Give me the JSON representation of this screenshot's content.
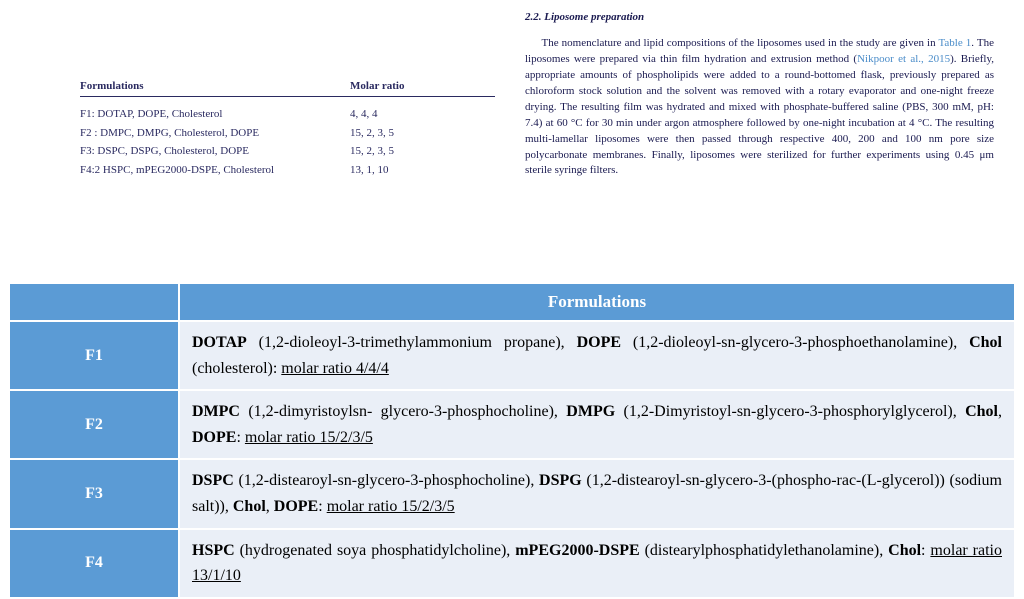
{
  "colors": {
    "accent_blue": "#5b9bd5",
    "row_bg": "#eaeff7",
    "text_body": "#1a1a50",
    "link": "#4a8cc9"
  },
  "small_table": {
    "header_col1": "Formulations",
    "header_col2": "Molar ratio",
    "rows": [
      {
        "c1": "F1: DOTAP, DOPE, Cholesterol",
        "c2": "4, 4, 4"
      },
      {
        "c1": "F2 : DMPC, DMPG, Cholesterol, DOPE",
        "c2": "15, 2, 3, 5"
      },
      {
        "c1": "F3: DSPC, DSPG, Cholesterol, DOPE",
        "c2": "15, 2, 3, 5"
      },
      {
        "c1": "F4:2 HSPC, mPEG2000-DSPE, Cholesterol",
        "c2": "13, 1, 10"
      }
    ]
  },
  "section": {
    "heading": "2.2.  Liposome preparation",
    "body_pre": "The nomenclature and lipid compositions of the liposomes used in the study are given in ",
    "link1": "Table 1",
    "body_mid": ". The liposomes were prepared via thin film hydration and extrusion method (",
    "link2": "Nikpoor et al., 2015",
    "body_post": "). Briefly, appropriate amounts of phospholipids were added to a round-bottomed flask, previously prepared as chloroform stock solution and the solvent was removed with a rotary evaporator and one-night freeze drying. The resulting film was hydrated and mixed with phosphate-buffered saline (PBS, 300 mM, pH: 7.4) at 60 °C for 30 min under argon atmosphere followed by one-night incubation at 4 °C. The resulting multi-lamellar liposomes were then passed through respective 400, 200 and 100 nm pore size polycarbonate membranes. Finally, liposomes were sterilized for further experiments using 0.45 μm sterile syringe filters."
  },
  "big_table": {
    "header": "Formulations",
    "rows": [
      {
        "label": "F1",
        "parts": [
          {
            "b": true,
            "t": "DOTAP"
          },
          {
            "t": " (1,2-dioleoyl-3-trimethylammonium propane), "
          },
          {
            "b": true,
            "t": "DOPE"
          },
          {
            "t": " (1,2-dioleoyl-sn-glycero-3-phosphoethanolamine), "
          },
          {
            "b": true,
            "t": "Chol"
          },
          {
            "t": " (cholesterol): "
          },
          {
            "u": true,
            "t": "molar ratio 4/4/4"
          }
        ]
      },
      {
        "label": "F2",
        "parts": [
          {
            "b": true,
            "t": "DMPC"
          },
          {
            "t": " (1,2-dimyristoylsn- glycero-3-phosphocholine), "
          },
          {
            "b": true,
            "t": "DMPG"
          },
          {
            "t": " (1,2-Dimyristoyl-sn-glycero-3-phosphorylglycerol), "
          },
          {
            "b": true,
            "t": "Chol"
          },
          {
            "t": ", "
          },
          {
            "b": true,
            "t": "DOPE"
          },
          {
            "t": ": "
          },
          {
            "u": true,
            "t": "molar ratio 15/2/3/5"
          }
        ]
      },
      {
        "label": "F3",
        "parts": [
          {
            "b": true,
            "t": "DSPC"
          },
          {
            "t": " (1,2-distearoyl-sn-glycero-3-phosphocholine), "
          },
          {
            "b": true,
            "t": "DSPG"
          },
          {
            "t": " (1,2-distearoyl-sn-glycero-3-(phospho-rac-(L-glycerol)) (sodium salt)), "
          },
          {
            "b": true,
            "t": "Chol"
          },
          {
            "t": ", "
          },
          {
            "b": true,
            "t": "DOPE"
          },
          {
            "t": ": "
          },
          {
            "u": true,
            "t": "molar ratio 15/2/3/5"
          }
        ]
      },
      {
        "label": "F4",
        "parts": [
          {
            "b": true,
            "t": "HSPC"
          },
          {
            "t": " (hydrogenated soya phosphatidylcholine), "
          },
          {
            "b": true,
            "t": "mPEG2000-DSPE"
          },
          {
            "t": " (distearylphosphatidylethanolamine), "
          },
          {
            "b": true,
            "t": "Chol"
          },
          {
            "t": ": "
          },
          {
            "u": true,
            "t": "molar ratio 13/1/10"
          }
        ]
      }
    ]
  }
}
